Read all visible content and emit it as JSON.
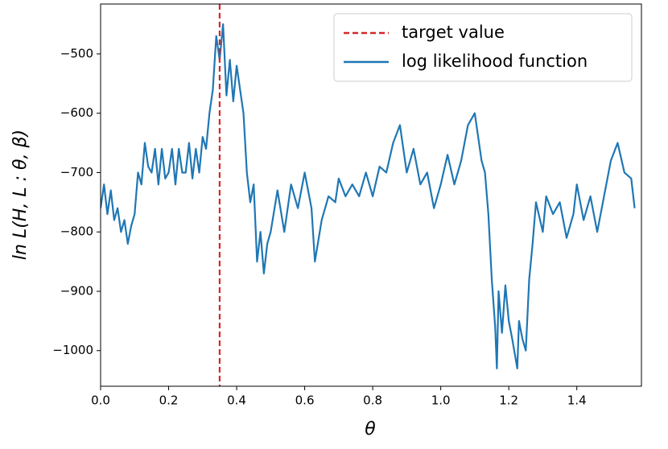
{
  "chart_data": {
    "type": "line",
    "xlabel": "θ",
    "ylabel": "ln L(H, L : θ, β)",
    "xlim": [
      0,
      1.59
    ],
    "ylim": [
      -1060,
      -416
    ],
    "xticks": [
      {
        "value": 0,
        "label": "0.0"
      },
      0.2,
      0.4,
      0.6,
      0.8,
      {
        "value": 1,
        "label": "1.0"
      },
      1.2,
      1.4
    ],
    "yticks": [
      {
        "value": -1000,
        "label": "−1000"
      },
      {
        "value": -900,
        "label": "−900"
      },
      {
        "value": -800,
        "label": "−800"
      },
      {
        "value": -700,
        "label": "−700"
      },
      {
        "value": -600,
        "label": "−600"
      },
      {
        "value": -500,
        "label": "−500"
      }
    ],
    "legend": "upper right",
    "vlines": [
      {
        "name": "target value",
        "x": 0.35,
        "color": "#d62728"
      }
    ],
    "series": [
      {
        "name": "log likelihood function",
        "color": "#1f77b4",
        "x": [
          0.0,
          0.01,
          0.02,
          0.03,
          0.04,
          0.05,
          0.06,
          0.07,
          0.08,
          0.09,
          0.1,
          0.11,
          0.12,
          0.13,
          0.14,
          0.15,
          0.16,
          0.17,
          0.18,
          0.19,
          0.2,
          0.21,
          0.22,
          0.23,
          0.24,
          0.25,
          0.26,
          0.27,
          0.28,
          0.29,
          0.3,
          0.31,
          0.32,
          0.33,
          0.34,
          0.35,
          0.36,
          0.37,
          0.38,
          0.39,
          0.4,
          0.41,
          0.42,
          0.43,
          0.44,
          0.45,
          0.46,
          0.47,
          0.48,
          0.49,
          0.5,
          0.52,
          0.54,
          0.56,
          0.58,
          0.6,
          0.62,
          0.63,
          0.65,
          0.67,
          0.69,
          0.7,
          0.72,
          0.74,
          0.76,
          0.78,
          0.8,
          0.82,
          0.84,
          0.86,
          0.88,
          0.9,
          0.92,
          0.94,
          0.96,
          0.98,
          1.0,
          1.02,
          1.04,
          1.06,
          1.08,
          1.1,
          1.12,
          1.13,
          1.14,
          1.15,
          1.16,
          1.165,
          1.17,
          1.18,
          1.19,
          1.2,
          1.21,
          1.225,
          1.23,
          1.24,
          1.25,
          1.26,
          1.27,
          1.28,
          1.3,
          1.31,
          1.33,
          1.35,
          1.37,
          1.39,
          1.4,
          1.42,
          1.44,
          1.46,
          1.48,
          1.5,
          1.52,
          1.54,
          1.56,
          1.57
        ],
        "values": [
          -760,
          -720,
          -770,
          -730,
          -780,
          -760,
          -800,
          -780,
          -820,
          -790,
          -770,
          -700,
          -720,
          -650,
          -690,
          -700,
          -660,
          -720,
          -660,
          -710,
          -700,
          -660,
          -720,
          -660,
          -700,
          -700,
          -650,
          -710,
          -660,
          -700,
          -640,
          -660,
          -600,
          -560,
          -470,
          -510,
          -450,
          -570,
          -510,
          -580,
          -520,
          -560,
          -600,
          -700,
          -750,
          -720,
          -850,
          -800,
          -870,
          -820,
          -800,
          -730,
          -800,
          -720,
          -760,
          -700,
          -760,
          -850,
          -780,
          -740,
          -750,
          -710,
          -740,
          -720,
          -740,
          -700,
          -740,
          -690,
          -700,
          -650,
          -620,
          -700,
          -660,
          -720,
          -700,
          -760,
          -720,
          -670,
          -720,
          -680,
          -620,
          -600,
          -680,
          -700,
          -770,
          -880,
          -960,
          -1030,
          -900,
          -970,
          -890,
          -950,
          -980,
          -1030,
          -950,
          -980,
          -1000,
          -880,
          -820,
          -750,
          -800,
          -740,
          -770,
          -750,
          -810,
          -770,
          -720,
          -780,
          -740,
          -800,
          -740,
          -680,
          -650,
          -700,
          -710,
          -760
        ]
      }
    ]
  }
}
